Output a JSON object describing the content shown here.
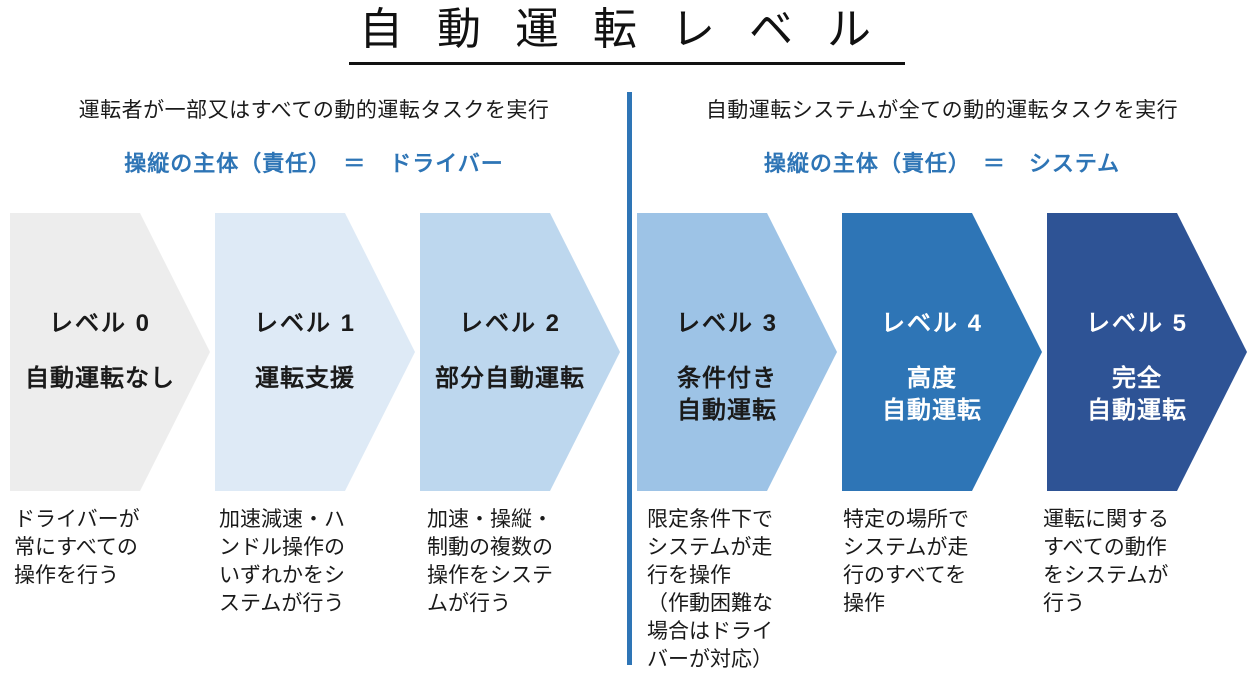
{
  "title": "自動運転レベル",
  "colors": {
    "accent": "#2E75B6",
    "divider": "#2E75B6",
    "level_fills": [
      "#EDEDED",
      "#DEEAF6",
      "#BDD7EE",
      "#9DC3E6",
      "#2E75B6",
      "#2E5395"
    ]
  },
  "headers": {
    "left": {
      "task": "運転者が一部又はすべての動的運転タスクを実行",
      "responsibility": "操縦の主体（責任）　＝　ドライバー"
    },
    "right": {
      "task": "自動運転システムが全ての動的運転タスクを実行",
      "responsibility": "操縦の主体（責任）　＝　システム"
    }
  },
  "levels": [
    {
      "level_label": "レベル 0",
      "name": "自動運転なし",
      "description": "ドライバーが\n常にすべての\n操作を行う",
      "fill": "#EDEDED",
      "text": "#1a1a1a"
    },
    {
      "level_label": "レベル 1",
      "name": "運転支援",
      "description": "加速減速・ハ\nンドル操作の\nいずれかをシ\nステムが行う",
      "fill": "#DEEAF6",
      "text": "#1a1a1a"
    },
    {
      "level_label": "レベル 2",
      "name": "部分自動運転",
      "description": "加速・操縦・\n制動の複数の\n操作をシステ\nムが行う",
      "fill": "#BDD7EE",
      "text": "#1a1a1a"
    },
    {
      "level_label": "レベル 3",
      "name": "条件付き\n自動運転",
      "description": "限定条件下で\nシステムが走\n行を操作\n（作動困難な\n場合はドライ\nバーが対応）",
      "fill": "#9DC3E6",
      "text": "#1a1a1a"
    },
    {
      "level_label": "レベル 4",
      "name": "高度\n自動運転",
      "description": "特定の場所で\nシステムが走\n行のすべてを\n操作",
      "fill": "#2E75B6",
      "text": "#ffffff"
    },
    {
      "level_label": "レベル 5",
      "name": "完全\n自動運転",
      "description": "運転に関する\nすべての動作\nをシステムが\n行う",
      "fill": "#2E5395",
      "text": "#ffffff"
    }
  ]
}
